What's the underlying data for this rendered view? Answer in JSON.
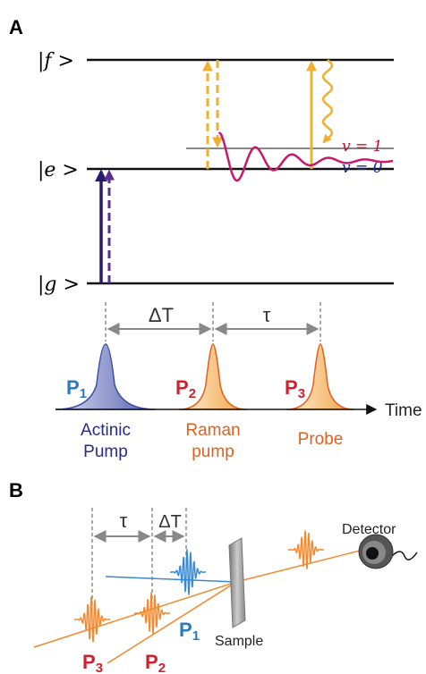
{
  "panel_a": {
    "label": "A",
    "levels": {
      "f": "|f >",
      "e": "|e >",
      "g": "|g >"
    },
    "vibrational": {
      "v1": "v = 1",
      "v0": "v = 0"
    },
    "delays": {
      "dt": "ΔT",
      "tau": "τ"
    },
    "pulses": [
      {
        "letter": "P",
        "sub": "1",
        "name": [
          "Actinic",
          "Pump"
        ]
      },
      {
        "letter": "P",
        "sub": "2",
        "name": [
          "Raman",
          "pump"
        ]
      },
      {
        "letter": "P",
        "sub": "3",
        "name": [
          "Probe"
        ]
      }
    ],
    "axis_label": "Time"
  },
  "panel_b": {
    "label": "B",
    "delays": {
      "tau": "τ",
      "dt": "ΔT"
    },
    "detector": "Detector",
    "sample": "Sample",
    "pulses": [
      {
        "letter": "P",
        "sub": "1"
      },
      {
        "letter": "P",
        "sub": "2"
      },
      {
        "letter": "P",
        "sub": "3"
      }
    ]
  }
}
